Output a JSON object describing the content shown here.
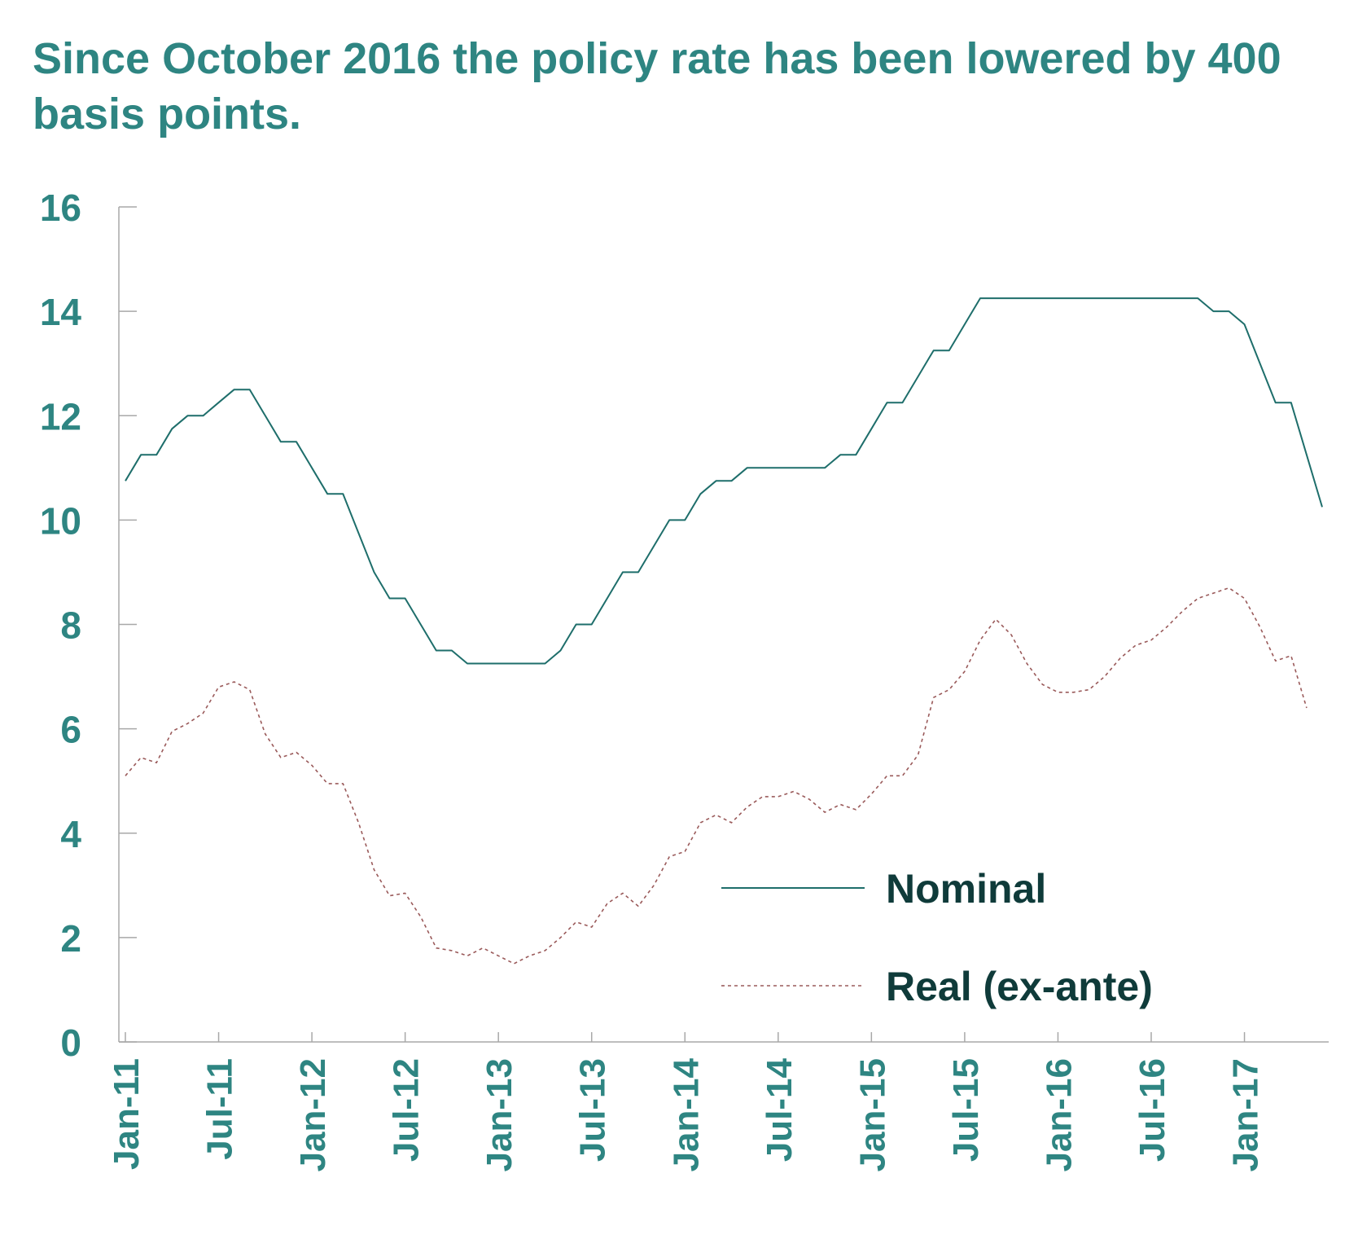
{
  "chart_data": {
    "type": "line",
    "title": "Since October 2016 the policy rate has been lowered by 400 basis points.",
    "xlabel": "",
    "ylabel": "",
    "ylim": [
      0,
      16
    ],
    "yticks": [
      "0",
      "2",
      "4",
      "6",
      "8",
      "10",
      "12",
      "14",
      "16"
    ],
    "xticks": [
      {
        "label": "Jan-11",
        "index": 0
      },
      {
        "label": "Jul-11",
        "index": 6
      },
      {
        "label": "Jan-12",
        "index": 12
      },
      {
        "label": "Jul-12",
        "index": 18
      },
      {
        "label": "Jan-13",
        "index": 24
      },
      {
        "label": "Jul-13",
        "index": 30
      },
      {
        "label": "Jan-14",
        "index": 36
      },
      {
        "label": "Jul-14",
        "index": 42
      },
      {
        "label": "Jan-15",
        "index": 48
      },
      {
        "label": "Jul-15",
        "index": 54
      },
      {
        "label": "Jan-16",
        "index": 60
      },
      {
        "label": "Jul-16",
        "index": 66
      },
      {
        "label": "Jan-17",
        "index": 72
      }
    ],
    "x_count": 78,
    "legend_position": "bottom-right",
    "series": [
      {
        "name": "Nominal",
        "color": "#1e6e6b",
        "style": "solid",
        "values": [
          10.75,
          11.25,
          11.25,
          11.75,
          12.0,
          12.0,
          12.25,
          12.5,
          12.5,
          12.0,
          11.5,
          11.5,
          11.0,
          10.5,
          10.5,
          9.75,
          9.0,
          8.5,
          8.5,
          8.0,
          7.5,
          7.5,
          7.25,
          7.25,
          7.25,
          7.25,
          7.25,
          7.25,
          7.5,
          8.0,
          8.0,
          8.5,
          9.0,
          9.0,
          9.5,
          10.0,
          10.0,
          10.5,
          10.75,
          10.75,
          11.0,
          11.0,
          11.0,
          11.0,
          11.0,
          11.0,
          11.25,
          11.25,
          11.75,
          12.25,
          12.25,
          12.75,
          13.25,
          13.25,
          13.75,
          14.25,
          14.25,
          14.25,
          14.25,
          14.25,
          14.25,
          14.25,
          14.25,
          14.25,
          14.25,
          14.25,
          14.25,
          14.25,
          14.25,
          14.25,
          14.0,
          14.0,
          13.75,
          13.0,
          12.25,
          12.25,
          11.25,
          10.25
        ]
      },
      {
        "name": "Real (ex-ante)",
        "color": "#9a5a5a",
        "style": "dashed",
        "values": [
          5.1,
          5.45,
          5.35,
          5.95,
          6.1,
          6.3,
          6.8,
          6.9,
          6.75,
          5.9,
          5.45,
          5.55,
          5.3,
          4.95,
          4.95,
          4.2,
          3.3,
          2.8,
          2.85,
          2.4,
          1.8,
          1.75,
          1.65,
          1.8,
          1.65,
          1.5,
          1.65,
          1.75,
          2.0,
          2.3,
          2.2,
          2.65,
          2.85,
          2.6,
          3.0,
          3.55,
          3.65,
          4.2,
          4.35,
          4.2,
          4.5,
          4.7,
          4.7,
          4.8,
          4.65,
          4.4,
          4.55,
          4.45,
          4.75,
          5.1,
          5.1,
          5.5,
          6.6,
          6.75,
          7.1,
          7.7,
          8.1,
          7.8,
          7.25,
          6.85,
          6.7,
          6.7,
          6.75,
          7.0,
          7.35,
          7.6,
          7.7,
          7.95,
          8.25,
          8.5,
          8.6,
          8.7,
          8.5,
          7.95,
          7.3,
          7.4,
          6.4
        ]
      }
    ]
  }
}
